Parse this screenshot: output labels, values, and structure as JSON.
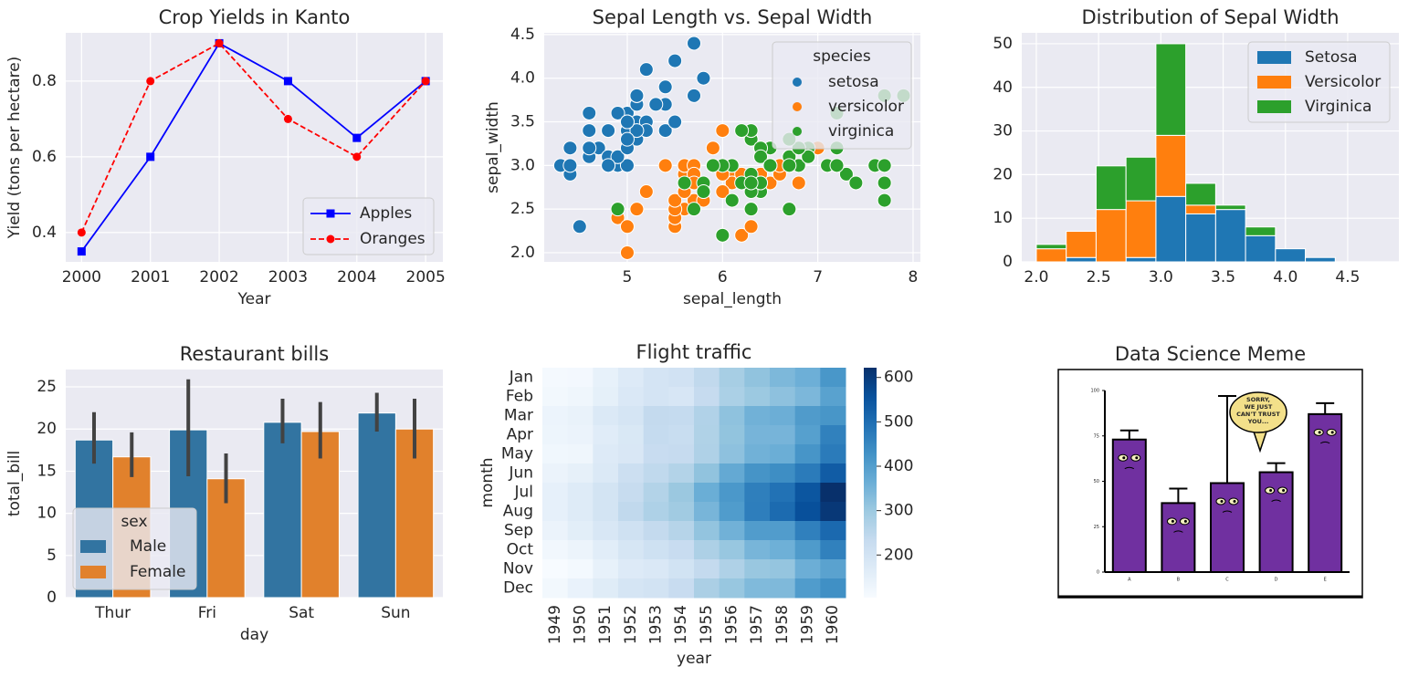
{
  "chart_data": [
    {
      "type": "line",
      "title": "Crop Yields in Kanto",
      "xlabel": "Year",
      "ylabel": "Yield (tons per hectare)",
      "x": [
        2000,
        2001,
        2002,
        2003,
        2004,
        2005
      ],
      "series": [
        {
          "name": "Apples",
          "color": "blue",
          "marker": "square",
          "linestyle": "solid",
          "values": [
            0.35,
            0.6,
            0.9,
            0.8,
            0.65,
            0.8
          ]
        },
        {
          "name": "Oranges",
          "color": "red",
          "marker": "circle",
          "linestyle": "dashed",
          "values": [
            0.4,
            0.8,
            0.9,
            0.7,
            0.6,
            0.8
          ]
        }
      ],
      "xlim": [
        1999.77,
        2005.25
      ],
      "ylim": [
        0.3225,
        0.9275
      ],
      "xticks": [
        2000,
        2001,
        2002,
        2003,
        2004,
        2005
      ],
      "yticks": [
        0.4,
        0.6,
        0.8
      ],
      "grid": true,
      "legend": "lower right"
    },
    {
      "type": "scatter",
      "title": "Sepal Length vs. Sepal Width",
      "xlabel": "sepal_length",
      "ylabel": "sepal_width",
      "legend_title": "species",
      "legend": "upper right",
      "grid": true,
      "xlim": [
        4.128,
        8.077
      ],
      "ylim": [
        1.895,
        4.52
      ],
      "xticks": [
        5,
        6,
        7,
        8
      ],
      "yticks": [
        {
          "value": 2,
          "label": "2.0"
        },
        2.5,
        {
          "value": 3,
          "label": "3.0"
        },
        3.5,
        {
          "value": 4,
          "label": "4.0"
        },
        4.5
      ],
      "series": [
        {
          "name": "setosa",
          "color": "#1f77b4",
          "x": [
            5.1,
            4.9,
            4.7,
            4.6,
            5.0,
            5.4,
            4.6,
            5.0,
            4.4,
            4.9,
            5.4,
            4.8,
            4.8,
            4.3,
            5.8,
            5.7,
            5.4,
            5.1,
            5.7,
            5.1,
            5.4,
            5.1,
            4.6,
            5.1,
            4.8,
            5.0,
            5.0,
            5.2,
            5.2,
            4.7,
            4.8,
            5.4,
            5.2,
            5.5,
            4.9,
            5.0,
            5.5,
            4.9,
            4.4,
            5.1,
            5.0,
            4.5,
            4.4,
            5.0,
            5.1,
            4.8,
            5.1,
            4.6,
            5.3,
            5.0
          ],
          "values": [
            3.5,
            3.0,
            3.2,
            3.1,
            3.6,
            3.9,
            3.4,
            3.4,
            2.9,
            3.1,
            3.7,
            3.4,
            3.0,
            3.0,
            4.0,
            4.4,
            3.9,
            3.5,
            3.8,
            3.8,
            3.4,
            3.7,
            3.6,
            3.3,
            3.4,
            3.0,
            3.4,
            3.5,
            3.4,
            3.2,
            3.1,
            3.4,
            4.1,
            4.2,
            3.1,
            3.2,
            3.5,
            3.6,
            3.0,
            3.4,
            3.5,
            2.3,
            3.2,
            3.5,
            3.8,
            3.0,
            3.8,
            3.2,
            3.7,
            3.3
          ]
        },
        {
          "name": "versicolor",
          "color": "#ff7f0e",
          "x": [
            7.0,
            6.4,
            6.9,
            5.5,
            6.5,
            5.7,
            6.3,
            4.9,
            6.6,
            5.2,
            5.0,
            5.9,
            6.0,
            6.1,
            5.6,
            6.7,
            5.6,
            5.8,
            6.2,
            5.6,
            5.9,
            6.1,
            6.3,
            6.1,
            6.4,
            6.6,
            6.8,
            6.7,
            6.0,
            5.7,
            5.5,
            5.5,
            5.8,
            6.0,
            5.4,
            6.0,
            6.7,
            6.3,
            5.6,
            5.5,
            5.5,
            6.1,
            5.8,
            5.0,
            5.6,
            5.7,
            5.7,
            6.2,
            5.1,
            5.7
          ],
          "values": [
            3.2,
            3.2,
            3.1,
            2.3,
            2.8,
            2.8,
            3.3,
            2.4,
            2.9,
            2.7,
            2.0,
            3.0,
            2.2,
            2.9,
            2.9,
            3.1,
            3.0,
            2.7,
            2.2,
            2.5,
            3.2,
            2.8,
            2.5,
            2.8,
            2.9,
            3.0,
            2.8,
            3.0,
            2.9,
            2.6,
            2.4,
            2.4,
            2.7,
            2.7,
            3.0,
            3.4,
            3.1,
            2.3,
            3.0,
            2.5,
            2.6,
            3.0,
            2.6,
            2.3,
            2.7,
            3.0,
            2.9,
            2.9,
            2.5,
            2.8
          ]
        },
        {
          "name": "virginica",
          "color": "#2ca02c",
          "x": [
            6.3,
            5.8,
            7.1,
            6.3,
            6.5,
            7.6,
            4.9,
            7.3,
            6.7,
            7.2,
            6.5,
            6.4,
            6.8,
            5.7,
            5.8,
            6.4,
            6.5,
            7.7,
            7.7,
            6.0,
            6.9,
            5.6,
            7.7,
            6.3,
            6.7,
            7.2,
            6.2,
            6.1,
            6.4,
            7.2,
            7.4,
            7.9,
            6.4,
            6.3,
            6.1,
            7.7,
            6.3,
            6.4,
            6.0,
            6.9,
            6.7,
            6.9,
            5.8,
            6.8,
            6.7,
            6.7,
            6.3,
            6.5,
            6.2,
            5.9
          ],
          "values": [
            3.3,
            2.7,
            3.0,
            2.9,
            3.0,
            3.0,
            2.5,
            2.9,
            2.5,
            3.6,
            3.2,
            2.7,
            3.0,
            2.5,
            2.8,
            3.2,
            3.0,
            3.8,
            2.6,
            2.2,
            3.2,
            2.8,
            2.8,
            2.7,
            3.3,
            3.2,
            2.8,
            3.0,
            2.8,
            3.0,
            2.8,
            3.8,
            2.8,
            2.8,
            2.6,
            3.0,
            3.4,
            3.1,
            3.0,
            3.1,
            3.1,
            3.1,
            2.7,
            3.2,
            3.3,
            3.0,
            2.5,
            3.0,
            3.4,
            3.0
          ]
        }
      ]
    },
    {
      "type": "histogram",
      "title": "Distribution of Sepal Width",
      "legend": "upper right",
      "grid": true,
      "stacked": true,
      "bins": [
        2.0,
        2.24,
        2.48,
        2.72,
        2.96,
        3.2,
        3.44,
        3.68,
        3.92,
        4.16,
        4.4
      ],
      "series": [
        {
          "name": "Setosa",
          "color": "#1f77b4",
          "values": [
            0,
            1,
            0,
            1,
            15,
            11,
            12,
            6,
            3,
            1
          ]
        },
        {
          "name": "Versicolor",
          "color": "#ff7f0e",
          "values": [
            3,
            6,
            12,
            13,
            14,
            2,
            0,
            0,
            0,
            0
          ]
        },
        {
          "name": "Virginica",
          "color": "#2ca02c",
          "values": [
            1,
            0,
            10,
            10,
            21,
            5,
            1,
            2,
            0,
            0
          ]
        }
      ],
      "xlim": [
        1.883,
        4.911
      ],
      "ylim": [
        0,
        52.5
      ],
      "xticks": [
        {
          "value": 2,
          "label": "2.0"
        },
        2.5,
        {
          "value": 3,
          "label": "3.0"
        },
        3.5,
        {
          "value": 4,
          "label": "4.0"
        },
        4.5
      ],
      "yticks": [
        0,
        10,
        20,
        30,
        40,
        50
      ]
    },
    {
      "type": "bar",
      "title": "Restaurant bills",
      "xlabel": "day",
      "ylabel": "total_bill",
      "legend_title": "sex",
      "legend": "lower left",
      "grid": true,
      "categories": [
        "Thur",
        "Fri",
        "Sat",
        "Sun"
      ],
      "series": [
        {
          "name": "Male",
          "color": "#3274a1",
          "values": [
            18.7,
            19.9,
            20.8,
            21.9
          ],
          "ci_low": [
            15.9,
            14.4,
            18.3,
            19.7
          ],
          "ci_high": [
            22.0,
            25.9,
            23.6,
            24.3
          ]
        },
        {
          "name": "Female",
          "color": "#e1812c",
          "values": [
            16.7,
            14.1,
            19.7,
            20.0
          ],
          "ci_low": [
            14.3,
            11.2,
            16.5,
            16.5
          ],
          "ci_high": [
            19.6,
            17.1,
            23.2,
            23.6
          ]
        }
      ],
      "errorbar_color": "#424242",
      "ylim": [
        0,
        27.06
      ],
      "yticks": [
        0,
        5,
        10,
        15,
        20,
        25
      ]
    },
    {
      "type": "heatmap",
      "title": "Flight traffic",
      "xlabel": "year",
      "ylabel": "month",
      "colormap": "Blues",
      "x": [
        "1949",
        "1950",
        "1951",
        "1952",
        "1953",
        "1954",
        "1955",
        "1956",
        "1957",
        "1958",
        "1959",
        "1960"
      ],
      "y": [
        "Jan",
        "Feb",
        "Mar",
        "Apr",
        "May",
        "Jun",
        "Jul",
        "Aug",
        "Sep",
        "Oct",
        "Nov",
        "Dec"
      ],
      "values": [
        [
          112,
          115,
          145,
          171,
          196,
          204,
          242,
          284,
          315,
          340,
          360,
          417
        ],
        [
          118,
          126,
          150,
          180,
          196,
          188,
          233,
          277,
          301,
          318,
          342,
          391
        ],
        [
          132,
          141,
          178,
          193,
          236,
          235,
          267,
          317,
          356,
          362,
          406,
          419
        ],
        [
          129,
          135,
          163,
          181,
          235,
          227,
          269,
          313,
          348,
          348,
          396,
          461
        ],
        [
          121,
          125,
          172,
          183,
          229,
          234,
          270,
          318,
          355,
          363,
          420,
          472
        ],
        [
          135,
          149,
          178,
          218,
          243,
          264,
          315,
          374,
          422,
          435,
          472,
          535
        ],
        [
          148,
          170,
          199,
          230,
          264,
          302,
          364,
          413,
          465,
          491,
          548,
          622
        ],
        [
          148,
          170,
          199,
          242,
          272,
          293,
          347,
          405,
          467,
          505,
          559,
          606
        ],
        [
          136,
          158,
          184,
          209,
          237,
          259,
          312,
          355,
          404,
          404,
          463,
          508
        ],
        [
          119,
          133,
          162,
          191,
          211,
          229,
          274,
          306,
          347,
          359,
          407,
          461
        ],
        [
          104,
          114,
          146,
          172,
          180,
          203,
          237,
          271,
          305,
          310,
          362,
          390
        ],
        [
          118,
          140,
          166,
          194,
          201,
          229,
          278,
          306,
          336,
          337,
          405,
          432
        ]
      ],
      "clim": [
        104,
        622
      ],
      "cticks": [
        200,
        300,
        400,
        500,
        600
      ]
    },
    {
      "type": "image",
      "title": "Data Science Meme",
      "categories": [
        "A",
        "B",
        "C",
        "D",
        "E"
      ],
      "values": [
        73,
        38,
        49,
        55,
        87
      ],
      "errors": [
        5,
        8,
        48,
        5,
        6
      ],
      "color": "#7030a0",
      "ylim": [
        0,
        100
      ],
      "yticks": [
        0,
        25,
        50,
        75,
        100
      ],
      "speech": [
        "SORRY,",
        "WE JUST",
        "CAN'T TRUST",
        "YOU..."
      ]
    }
  ]
}
